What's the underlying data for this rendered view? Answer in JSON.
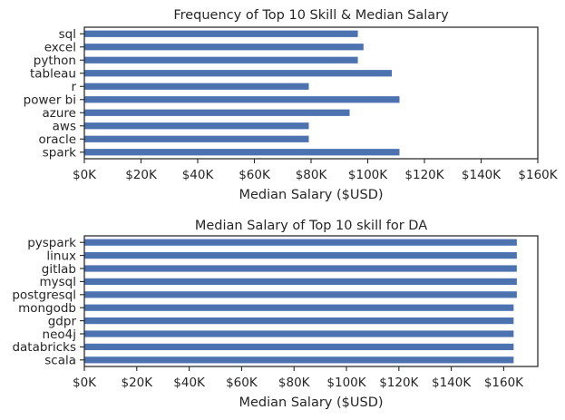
{
  "chart_data": [
    {
      "type": "bar",
      "orientation": "horizontal",
      "title": "Frequency of Top 10 Skill & Median Salary",
      "xlabel": "Median Salary ($USD)",
      "ylabel": "",
      "categories": [
        "sql",
        "excel",
        "python",
        "tableau",
        "r",
        "power bi",
        "azure",
        "aws",
        "oracle",
        "spark"
      ],
      "values": [
        96500,
        98500,
        96500,
        108500,
        79200,
        111200,
        93600,
        79200,
        79200,
        111200
      ],
      "xlim": [
        0,
        160000
      ],
      "xticks": [
        0,
        20000,
        40000,
        60000,
        80000,
        100000,
        120000,
        140000,
        160000
      ],
      "xtick_labels": [
        "$0K",
        "$20K",
        "$40K",
        "$60K",
        "$80K",
        "$100K",
        "$120K",
        "$140K",
        "$160K"
      ],
      "color": "#4c72b0",
      "grid": false
    },
    {
      "type": "bar",
      "orientation": "horizontal",
      "title": "Median Salary of Top 10 skill for DA",
      "xlabel": "Median Salary ($USD)",
      "ylabel": "",
      "categories": [
        "pyspark",
        "linux",
        "gitlab",
        "mysql",
        "postgresql",
        "mongodb",
        "gdpr",
        "neo4j",
        "databricks",
        "scala"
      ],
      "values": [
        165000,
        165000,
        165000,
        165000,
        165000,
        163782,
        163782,
        163782,
        163782,
        163782
      ],
      "xlim": [
        0,
        173000
      ],
      "xticks": [
        0,
        20000,
        40000,
        60000,
        80000,
        100000,
        120000,
        140000,
        160000
      ],
      "xtick_labels": [
        "$0K",
        "$20K",
        "$40K",
        "$60K",
        "$80K",
        "$100K",
        "$120K",
        "$140K",
        "$160K"
      ],
      "color": "#4c72b0",
      "grid": false
    }
  ]
}
